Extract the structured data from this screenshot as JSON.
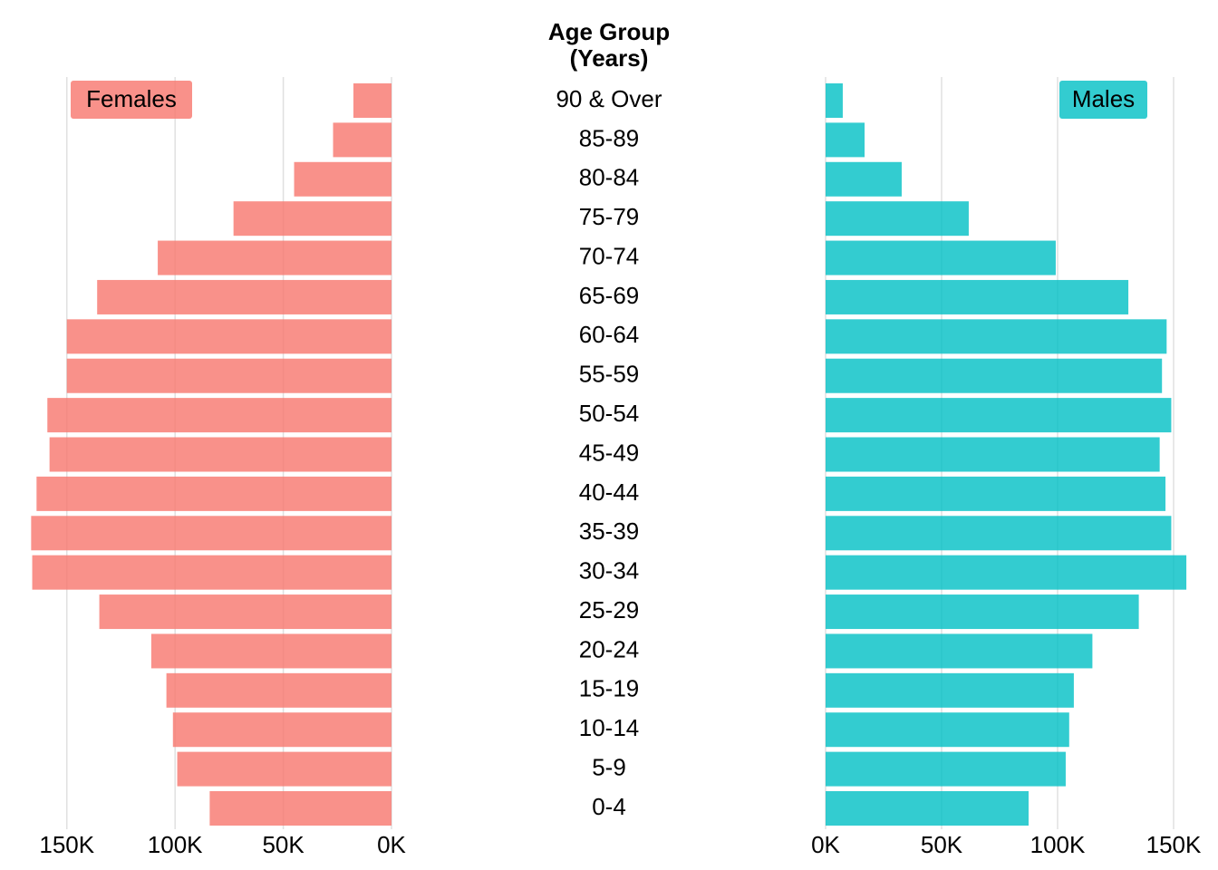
{
  "chart_data": {
    "type": "bar",
    "title": [
      "Age Group",
      "(Years)"
    ],
    "categories": [
      "0-4",
      "5-9",
      "10-14",
      "15-19",
      "20-24",
      "25-29",
      "30-34",
      "35-39",
      "40-44",
      "45-49",
      "50-54",
      "55-59",
      "60-64",
      "65-69",
      "70-74",
      "75-79",
      "80-84",
      "85-89",
      "90 & Over"
    ],
    "series": [
      {
        "name": "Females",
        "color": "#F8766D",
        "reversed": true,
        "values": [
          84000,
          99000,
          101000,
          104000,
          111000,
          135000,
          166000,
          166500,
          164000,
          158000,
          159000,
          150000,
          150000,
          136000,
          108000,
          73000,
          45000,
          27000,
          17600
        ],
        "xlim": [
          0,
          170000
        ],
        "xticks": [
          {
            "value": 0,
            "label": "0K"
          },
          {
            "value": 50000,
            "label": "50K"
          },
          {
            "value": 100000,
            "label": "100K"
          },
          {
            "value": 150000,
            "label": "150K"
          }
        ]
      },
      {
        "name": "Males",
        "color": "#00BFC4",
        "reversed": false,
        "values": [
          87500,
          103500,
          105000,
          107000,
          115000,
          135000,
          155500,
          149000,
          146500,
          144000,
          149000,
          145000,
          147000,
          130500,
          99200,
          61700,
          32800,
          16800,
          7400
        ],
        "xlim": [
          0,
          160000
        ],
        "xticks": [
          {
            "value": 0,
            "label": "0K"
          },
          {
            "value": 50000,
            "label": "50K"
          },
          {
            "value": 100000,
            "label": "100K"
          },
          {
            "value": 150000,
            "label": "150K"
          }
        ]
      }
    ],
    "grid": true
  }
}
